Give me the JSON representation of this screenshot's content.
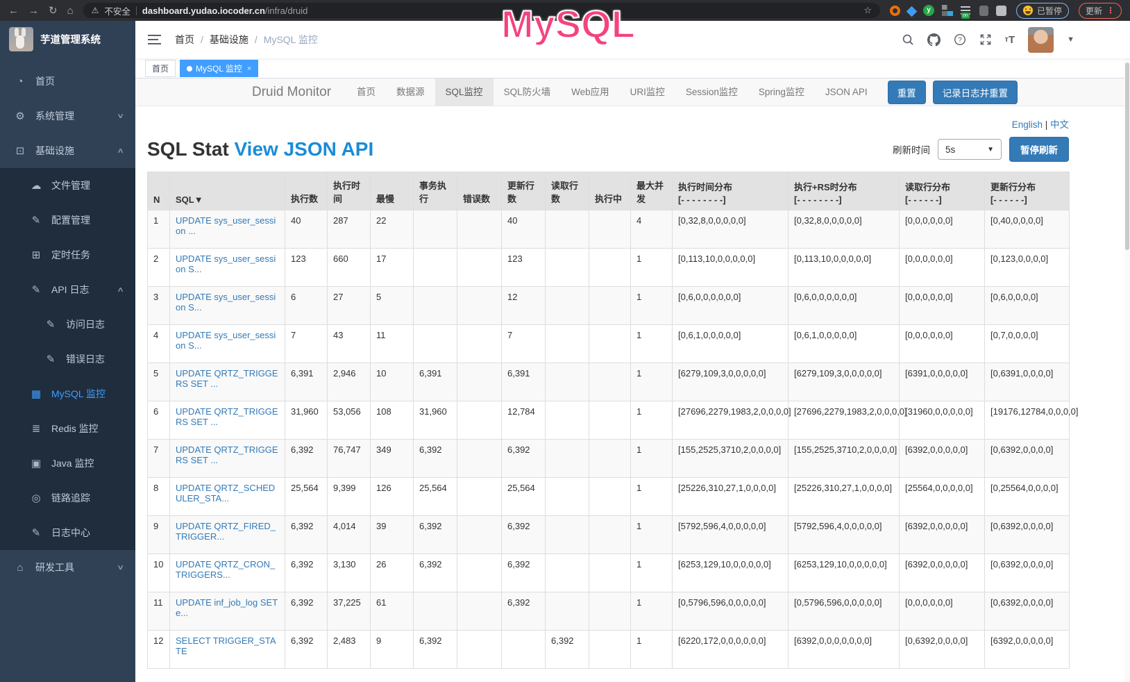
{
  "browser": {
    "security_warning": "不安全",
    "url_host": "dashboard.yudao.iocoder.cn",
    "url_path": "/infra/druid",
    "extension_y": "y",
    "extension_badge": "on",
    "paused_pill": "已暂停",
    "update_button": "更新"
  },
  "annotation": {
    "text": "MySQL",
    "color": "#f4437d"
  },
  "sidebar": {
    "logo_title": "芋道管理系统",
    "items": [
      {
        "label": "首页",
        "icon": "dashboard-icon",
        "glyph": "◔",
        "level": 1
      },
      {
        "label": "系统管理",
        "icon": "gear-icon",
        "glyph": "⚙",
        "level": 1,
        "chevron": "down"
      },
      {
        "label": "基础设施",
        "icon": "infrastructure-icon",
        "glyph": "⊡",
        "level": 1,
        "chevron": "up"
      },
      {
        "label": "文件管理",
        "icon": "file-manage-icon",
        "glyph": "☁",
        "level": 2
      },
      {
        "label": "配置管理",
        "icon": "config-manage-icon",
        "glyph": "✎",
        "level": 2
      },
      {
        "label": "定时任务",
        "icon": "scheduled-task-icon",
        "glyph": "⊞",
        "level": 2
      },
      {
        "label": "API 日志",
        "icon": "api-log-icon",
        "glyph": "✎",
        "level": 2,
        "chevron": "up"
      },
      {
        "label": "访问日志",
        "icon": "access-log-icon",
        "glyph": "✎",
        "level": 3
      },
      {
        "label": "错误日志",
        "icon": "error-log-icon",
        "glyph": "✎",
        "level": 3
      },
      {
        "label": "MySQL 监控",
        "icon": "mysql-monitor-icon",
        "glyph": "▦",
        "level": 2,
        "active": true
      },
      {
        "label": "Redis 监控",
        "icon": "redis-monitor-icon",
        "glyph": "≣",
        "level": 2
      },
      {
        "label": "Java 监控",
        "icon": "java-monitor-icon",
        "glyph": "▣",
        "level": 2
      },
      {
        "label": "链路追踪",
        "icon": "trace-icon",
        "glyph": "◎",
        "level": 2
      },
      {
        "label": "日志中心",
        "icon": "log-center-icon",
        "glyph": "✎",
        "level": 2
      },
      {
        "label": "研发工具",
        "icon": "dev-tools-icon",
        "glyph": "⌂",
        "level": 1,
        "chevron": "down"
      }
    ]
  },
  "header": {
    "breadcrumb": [
      "首页",
      "基础设施",
      "MySQL 监控"
    ]
  },
  "tags": [
    {
      "label": "首页"
    },
    {
      "label": "MySQL 监控",
      "active": true,
      "closable": true
    }
  ],
  "druid": {
    "brand": "Druid Monitor",
    "nav_items": [
      "首页",
      "数据源",
      "SQL监控",
      "SQL防火墙",
      "Web应用",
      "URI监控",
      "Session监控",
      "Spring监控",
      "JSON API"
    ],
    "active_item": "SQL监控",
    "reset_button": "重置",
    "log_reset_button": "记录日志并重置"
  },
  "content": {
    "lang_links": [
      "English",
      "中文"
    ],
    "title": "SQL Stat",
    "title_link": "View JSON API",
    "refresh_label": "刷新时间",
    "refresh_interval": "5s",
    "pause_button": "暂停刷新"
  },
  "table": {
    "headers": [
      {
        "label": "N"
      },
      {
        "label": "SQL▼"
      },
      {
        "label": "执行数"
      },
      {
        "label": "执行时间"
      },
      {
        "label": "最慢"
      },
      {
        "label": "事务执行"
      },
      {
        "label": "错误数"
      },
      {
        "label": "更新行数"
      },
      {
        "label": "读取行数"
      },
      {
        "label": "执行中"
      },
      {
        "label": "最大并发"
      },
      {
        "label": "执行时间分布",
        "sub": "[- - - - - - - -]"
      },
      {
        "label": "执行+RS时分布",
        "sub": "[- - - - - - - -]"
      },
      {
        "label": "读取行分布",
        "sub": "[- - - - - -]"
      },
      {
        "label": "更新行分布",
        "sub": "[- - - - - -]"
      }
    ],
    "rows": [
      {
        "n": "1",
        "sql": "UPDATE sys_user_session ...",
        "exec_count": "40",
        "exec_time": "287",
        "slowest": "22",
        "tx_exec": "",
        "errors": "",
        "update_rows": "40",
        "read_rows": "",
        "executing": "",
        "max_concurrent": "4",
        "exec_time_dist": "[0,32,8,0,0,0,0,0]",
        "exec_rs_dist": "[0,32,8,0,0,0,0,0]",
        "read_dist": "[0,0,0,0,0,0]",
        "update_dist": "[0,40,0,0,0,0]"
      },
      {
        "n": "2",
        "sql": "UPDATE sys_user_session S...",
        "exec_count": "123",
        "exec_time": "660",
        "slowest": "17",
        "tx_exec": "",
        "errors": "",
        "update_rows": "123",
        "read_rows": "",
        "executing": "",
        "max_concurrent": "1",
        "exec_time_dist": "[0,113,10,0,0,0,0,0]",
        "exec_rs_dist": "[0,113,10,0,0,0,0,0]",
        "read_dist": "[0,0,0,0,0,0]",
        "update_dist": "[0,123,0,0,0,0]"
      },
      {
        "n": "3",
        "sql": "UPDATE sys_user_session S...",
        "exec_count": "6",
        "exec_time": "27",
        "slowest": "5",
        "tx_exec": "",
        "errors": "",
        "update_rows": "12",
        "read_rows": "",
        "executing": "",
        "max_concurrent": "1",
        "exec_time_dist": "[0,6,0,0,0,0,0,0]",
        "exec_rs_dist": "[0,6,0,0,0,0,0,0]",
        "read_dist": "[0,0,0,0,0,0]",
        "update_dist": "[0,6,0,0,0,0]"
      },
      {
        "n": "4",
        "sql": "UPDATE sys_user_session S...",
        "exec_count": "7",
        "exec_time": "43",
        "slowest": "11",
        "tx_exec": "",
        "errors": "",
        "update_rows": "7",
        "read_rows": "",
        "executing": "",
        "max_concurrent": "1",
        "exec_time_dist": "[0,6,1,0,0,0,0,0]",
        "exec_rs_dist": "[0,6,1,0,0,0,0,0]",
        "read_dist": "[0,0,0,0,0,0]",
        "update_dist": "[0,7,0,0,0,0]"
      },
      {
        "n": "5",
        "sql": "UPDATE QRTZ_TRIGGERS SET ...",
        "exec_count": "6,391",
        "exec_time": "2,946",
        "slowest": "10",
        "tx_exec": "6,391",
        "errors": "",
        "update_rows": "6,391",
        "read_rows": "",
        "executing": "",
        "max_concurrent": "1",
        "exec_time_dist": "[6279,109,3,0,0,0,0,0]",
        "exec_rs_dist": "[6279,109,3,0,0,0,0,0]",
        "read_dist": "[6391,0,0,0,0,0]",
        "update_dist": "[0,6391,0,0,0,0]"
      },
      {
        "n": "6",
        "sql": "UPDATE QRTZ_TRIGGERS SET ...",
        "exec_count": "31,960",
        "exec_time": "53,056",
        "slowest": "108",
        "tx_exec": "31,960",
        "errors": "",
        "update_rows": "12,784",
        "read_rows": "",
        "executing": "",
        "max_concurrent": "1",
        "exec_time_dist": "[27696,2279,1983,2,0,0,0,0]",
        "exec_rs_dist": "[27696,2279,1983,2,0,0,0,0]",
        "read_dist": "[31960,0,0,0,0,0]",
        "update_dist": "[19176,12784,0,0,0,0]"
      },
      {
        "n": "7",
        "sql": "UPDATE QRTZ_TRIGGERS SET ...",
        "exec_count": "6,392",
        "exec_time": "76,747",
        "slowest": "349",
        "tx_exec": "6,392",
        "errors": "",
        "update_rows": "6,392",
        "read_rows": "",
        "executing": "",
        "max_concurrent": "1",
        "exec_time_dist": "[155,2525,3710,2,0,0,0,0]",
        "exec_rs_dist": "[155,2525,3710,2,0,0,0,0]",
        "read_dist": "[6392,0,0,0,0,0]",
        "update_dist": "[0,6392,0,0,0,0]"
      },
      {
        "n": "8",
        "sql": "UPDATE QRTZ_SCHEDULER_STA...",
        "exec_count": "25,564",
        "exec_time": "9,399",
        "slowest": "126",
        "tx_exec": "25,564",
        "errors": "",
        "update_rows": "25,564",
        "read_rows": "",
        "executing": "",
        "max_concurrent": "1",
        "exec_time_dist": "[25226,310,27,1,0,0,0,0]",
        "exec_rs_dist": "[25226,310,27,1,0,0,0,0]",
        "read_dist": "[25564,0,0,0,0,0]",
        "update_dist": "[0,25564,0,0,0,0]"
      },
      {
        "n": "9",
        "sql": "UPDATE QRTZ_FIRED_TRIGGER...",
        "exec_count": "6,392",
        "exec_time": "4,014",
        "slowest": "39",
        "tx_exec": "6,392",
        "errors": "",
        "update_rows": "6,392",
        "read_rows": "",
        "executing": "",
        "max_concurrent": "1",
        "exec_time_dist": "[5792,596,4,0,0,0,0,0]",
        "exec_rs_dist": "[5792,596,4,0,0,0,0,0]",
        "read_dist": "[6392,0,0,0,0,0]",
        "update_dist": "[0,6392,0,0,0,0]"
      },
      {
        "n": "10",
        "sql": "UPDATE QRTZ_CRON_TRIGGERS...",
        "exec_count": "6,392",
        "exec_time": "3,130",
        "slowest": "26",
        "tx_exec": "6,392",
        "errors": "",
        "update_rows": "6,392",
        "read_rows": "",
        "executing": "",
        "max_concurrent": "1",
        "exec_time_dist": "[6253,129,10,0,0,0,0,0]",
        "exec_rs_dist": "[6253,129,10,0,0,0,0,0]",
        "read_dist": "[6392,0,0,0,0,0]",
        "update_dist": "[0,6392,0,0,0,0]"
      },
      {
        "n": "11",
        "sql": "UPDATE inf_job_log SET e...",
        "exec_count": "6,392",
        "exec_time": "37,225",
        "slowest": "61",
        "tx_exec": "",
        "errors": "",
        "update_rows": "6,392",
        "read_rows": "",
        "executing": "",
        "max_concurrent": "1",
        "exec_time_dist": "[0,5796,596,0,0,0,0,0]",
        "exec_rs_dist": "[0,5796,596,0,0,0,0,0]",
        "read_dist": "[0,0,0,0,0,0]",
        "update_dist": "[0,6392,0,0,0,0]"
      },
      {
        "n": "12",
        "sql": "SELECT TRIGGER_STATE",
        "exec_count": "6,392",
        "exec_time": "2,483",
        "slowest": "9",
        "tx_exec": "6,392",
        "errors": "",
        "update_rows": "",
        "read_rows": "6,392",
        "executing": "",
        "max_concurrent": "1",
        "exec_time_dist": "[6220,172,0,0,0,0,0,0]",
        "exec_rs_dist": "[6392,0,0,0,0,0,0,0]",
        "read_dist": "[0,6392,0,0,0,0]",
        "update_dist": "[6392,0,0,0,0,0]"
      }
    ]
  }
}
